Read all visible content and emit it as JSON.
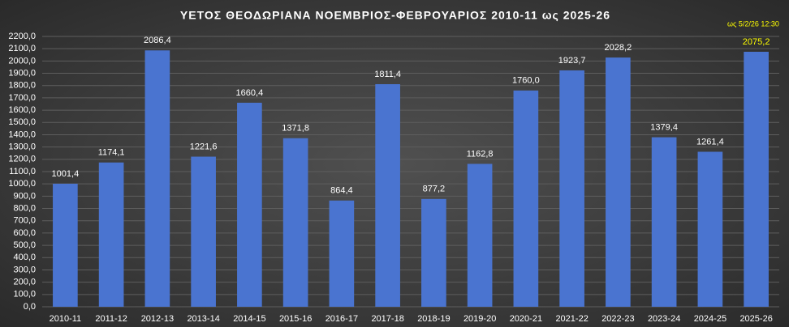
{
  "chart_data": {
    "type": "bar",
    "title": "ΥΕΤΟΣ ΘΕΟΔΩΡΙΑΝΑ ΝΟΕΜΒΡΙΟΣ-ΦΕΒΡΟΥΑΡΙΟΣ 2010-11 ως 2025-26",
    "annotation": "ως 5/2/26 12:30",
    "categories": [
      "2010-11",
      "2011-12",
      "2012-13",
      "2013-14",
      "2014-15",
      "2015-16",
      "2016-17",
      "2017-18",
      "2018-19",
      "2019-20",
      "2020-21",
      "2021-22",
      "2022-23",
      "2023-24",
      "2024-25",
      "2025-26"
    ],
    "values": [
      1001.4,
      1174.1,
      2086.4,
      1221.6,
      1660.4,
      1371.8,
      864.4,
      1811.4,
      877.2,
      1162.8,
      1760.0,
      1923.7,
      2028.2,
      1379.4,
      1261.4,
      2075.2
    ],
    "value_labels": [
      "1001,4",
      "1174,1",
      "2086,4",
      "1221,6",
      "1660,4",
      "1371,8",
      "864,4",
      "1811,4",
      "877,2",
      "1162,8",
      "1760,0",
      "1923,7",
      "2028,2",
      "1379,4",
      "1261,4",
      "2075,2"
    ],
    "value_label_colors": [
      "#ffffff",
      "#ffffff",
      "#ffffff",
      "#ffffff",
      "#ffffff",
      "#ffffff",
      "#ffffff",
      "#ffffff",
      "#ffffff",
      "#ffffff",
      "#ffffff",
      "#ffffff",
      "#ffffff",
      "#ffffff",
      "#ffffff",
      "#ffff00"
    ],
    "color": "#4a74d0",
    "ylim": [
      0,
      2200
    ],
    "yticks": [
      {
        "value": 0,
        "label": "0,0"
      },
      {
        "value": 100,
        "label": "100,0"
      },
      {
        "value": 200,
        "label": "200,0"
      },
      {
        "value": 300,
        "label": "300,0"
      },
      {
        "value": 400,
        "label": "400,0"
      },
      {
        "value": 500,
        "label": "500,0"
      },
      {
        "value": 600,
        "label": "600,0"
      },
      {
        "value": 700,
        "label": "700,0"
      },
      {
        "value": 800,
        "label": "800,0"
      },
      {
        "value": 900,
        "label": "900,0"
      },
      {
        "value": 1000,
        "label": "1000,0"
      },
      {
        "value": 1100,
        "label": "1100,0"
      },
      {
        "value": 1200,
        "label": "1200,0"
      },
      {
        "value": 1300,
        "label": "1300,0"
      },
      {
        "value": 1400,
        "label": "1400,0"
      },
      {
        "value": 1500,
        "label": "1500,0"
      },
      {
        "value": 1600,
        "label": "1600,0"
      },
      {
        "value": 1700,
        "label": "1700,0"
      },
      {
        "value": 1800,
        "label": "1800,0"
      },
      {
        "value": 1900,
        "label": "1900,0"
      },
      {
        "value": 2000,
        "label": "2000,0"
      },
      {
        "value": 2100,
        "label": "2100,0"
      },
      {
        "value": 2200,
        "label": "2200,0"
      }
    ],
    "grid": true
  }
}
